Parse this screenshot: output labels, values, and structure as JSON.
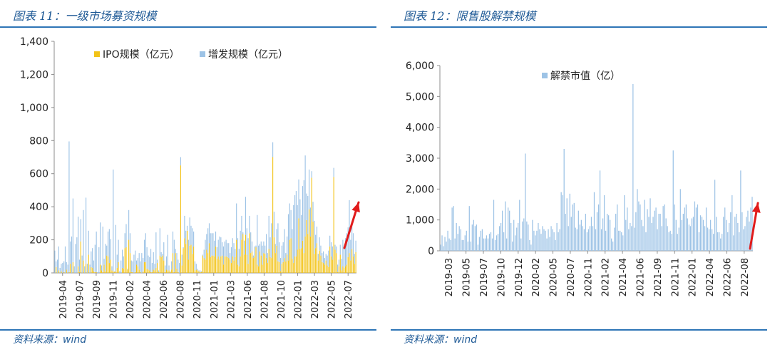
{
  "left": {
    "title": "图表 11：一级市场募资规模",
    "source_label": "资料来源：",
    "source_value": "wind",
    "colors": {
      "ipo": "#f2c318",
      "sec": "#9dc3e6",
      "arrow": "#e11b1b"
    },
    "chart_data": {
      "type": "bar",
      "stacked": true,
      "ylim": [
        0,
        1400
      ],
      "yticks": [
        "0",
        "200",
        "400",
        "600",
        "800",
        "1,000",
        "1,200",
        "1,400"
      ],
      "xticks": [
        "2019-04",
        "2019-07",
        "2019-09",
        "2019-11",
        "2020-02",
        "2020-04",
        "2020-06",
        "2020-08",
        "2020-11",
        "2021-01",
        "2021-03",
        "2021-06",
        "2021-08",
        "2021-10",
        "2022-01",
        "2022-03",
        "2022-05",
        "2022-07"
      ],
      "legend_placement": "top",
      "series": [
        {
          "name": "IPO规模（亿元）",
          "values": [
            0,
            35,
            0,
            15,
            0,
            10,
            0,
            5,
            0,
            20,
            0,
            5,
            55,
            0,
            65,
            0,
            0,
            0,
            40,
            5,
            190,
            0,
            75,
            0,
            55,
            0,
            110,
            0,
            35,
            30,
            10,
            5,
            5,
            0,
            0,
            50,
            15,
            5,
            50,
            10,
            105,
            100,
            60,
            80,
            15,
            10,
            5,
            10,
            30,
            65,
            0,
            0,
            30,
            25,
            150,
            155,
            20,
            200,
            120,
            5,
            5,
            0,
            5,
            50,
            40,
            20,
            5,
            0,
            10,
            65,
            65,
            25,
            20,
            15,
            5,
            5,
            20,
            15,
            30,
            60,
            5,
            105,
            95,
            105,
            75,
            5,
            20,
            15,
            15,
            5,
            20,
            120,
            5,
            120,
            25,
            5,
            0,
            650,
            45,
            150,
            210,
            175,
            255,
            80,
            165,
            170,
            115,
            160,
            15,
            20,
            15,
            10,
            5,
            5,
            105,
            90,
            80,
            140,
            120,
            180,
            95,
            105,
            105,
            100,
            160,
            85,
            100,
            80,
            100,
            105,
            50,
            100,
            100,
            95,
            90,
            80,
            60,
            100,
            75,
            95,
            200,
            50,
            40,
            100,
            200,
            235,
            110,
            230,
            110,
            55,
            240,
            120,
            130,
            90,
            100,
            155,
            50,
            40,
            130,
            105,
            50,
            120,
            115,
            90,
            60,
            145,
            95,
            90,
            700,
            215,
            120,
            165,
            70,
            65,
            10,
            55,
            65,
            90,
            70,
            110,
            75,
            200,
            210,
            85,
            60,
            100,
            100,
            140,
            330,
            145,
            150,
            195,
            120,
            220,
            320,
            235,
            385,
            220,
            575,
            310,
            115,
            150,
            180,
            75,
            135,
            105,
            65,
            60,
            50,
            75,
            45,
            35,
            160,
            100,
            80,
            580,
            140,
            120,
            5,
            40,
            110,
            15,
            40,
            30,
            40,
            50,
            95,
            120,
            75,
            145,
            100,
            55,
            125
          ]
        },
        {
          "name": "增发规模（亿元）",
          "values": [
            135,
            35,
            80,
            145,
            30,
            45,
            60,
            65,
            160,
            45,
            50,
            790,
            135,
            220,
            385,
            40,
            175,
            215,
            300,
            75,
            135,
            105,
            305,
            40,
            400,
            55,
            145,
            50,
            95,
            120,
            65,
            165,
            245,
            5,
            155,
            255,
            30,
            275,
            35,
            165,
            60,
            150,
            205,
            125,
            25,
            615,
            5,
            280,
            80,
            135,
            10,
            75,
            110,
            75,
            90,
            140,
            5,
            180,
            120,
            70,
            65,
            110,
            130,
            25,
            50,
            100,
            65,
            120,
            80,
            135,
            175,
            130,
            85,
            80,
            140,
            55,
            105,
            40,
            215,
            20,
            10,
            165,
            30,
            10,
            110,
            40,
            80,
            215,
            30,
            5,
            50,
            130,
            195,
            25,
            95,
            75,
            60,
            50,
            65,
            5,
            135,
            80,
            30,
            120,
            170,
            115,
            155,
            90,
            55,
            35,
            10,
            5,
            10,
            5,
            5,
            50,
            120,
            95,
            150,
            120,
            145,
            135,
            135,
            95,
            90,
            70,
            100,
            140,
            115,
            80,
            110,
            90,
            100,
            85,
            90,
            40,
            95,
            110,
            105,
            50,
            220,
            160,
            105,
            155,
            145,
            10,
            85,
            230,
            160,
            155,
            105,
            125,
            60,
            15,
            60,
            10,
            300,
            125,
            45,
            85,
            115,
            70,
            50,
            145,
            60,
            200,
            120,
            210,
            90,
            155,
            55,
            100,
            230,
            120,
            80,
            110,
            120,
            175,
            50,
            110,
            280,
            220,
            170,
            180,
            350,
            370,
            395,
            270,
            235,
            300,
            200,
            330,
            440,
            490,
            160,
            230,
            240,
            175,
            40,
            120,
            200,
            80,
            100,
            40,
            80,
            60,
            55,
            70,
            40,
            40,
            60,
            100,
            65,
            85,
            80,
            55,
            30,
            40,
            45,
            40,
            60,
            70,
            160,
            115,
            170,
            190,
            180,
            320,
            125,
            160,
            140,
            60,
            70,
            15,
            25
          ]
        }
      ]
    }
  },
  "right": {
    "title": "图表 12：限售股解禁规模",
    "source_label": "资料来源：",
    "source_value": "wind",
    "colors": {
      "bar": "#9dc3e6",
      "arrow": "#e11b1b"
    },
    "chart_data": {
      "type": "bar",
      "ylim": [
        0,
        6000
      ],
      "yticks": [
        "0",
        "1,000",
        "2,000",
        "3,000",
        "4,000",
        "5,000",
        "6,000"
      ],
      "xticks": [
        "2019-03",
        "2019-05",
        "2019-07",
        "2019-10",
        "2019-12",
        "2020-02",
        "2020-05",
        "2020-07",
        "2020-11",
        "2021-02",
        "2021-04",
        "2021-06",
        "2021-09",
        "2021-11",
        "2022-01",
        "2022-04",
        "2022-06",
        "2022-08"
      ],
      "legend_placement": "top",
      "series": [
        {
          "name": "解禁市值（亿）",
          "values": [
            200,
            500,
            150,
            450,
            300,
            650,
            400,
            350,
            1400,
            1450,
            400,
            900,
            550,
            800,
            700,
            350,
            350,
            500,
            650,
            300,
            1450,
            300,
            850,
            1000,
            800,
            850,
            200,
            450,
            650,
            700,
            400,
            400,
            500,
            400,
            550,
            600,
            400,
            1650,
            350,
            500,
            550,
            800,
            900,
            1300,
            600,
            1600,
            400,
            1400,
            1300,
            900,
            300,
            1000,
            500,
            750,
            900,
            1650,
            400,
            950,
            1050,
            3150,
            950,
            850,
            350,
            200,
            1000,
            650,
            500,
            650,
            900,
            700,
            550,
            800,
            700,
            650,
            400,
            700,
            450,
            800,
            700,
            600,
            350,
            900,
            600,
            700,
            1900,
            1800,
            3300,
            1200,
            1700,
            800,
            1850,
            1100,
            1500,
            1550,
            750,
            700,
            1300,
            850,
            1000,
            800,
            700,
            1200,
            600,
            700,
            800,
            1100,
            800,
            1900,
            700,
            1250,
            1500,
            2600,
            700,
            1050,
            1800,
            650,
            1200,
            1150,
            1000,
            400,
            300,
            750,
            1200,
            1500,
            650,
            650,
            600,
            500,
            1800,
            1000,
            1400,
            700,
            900,
            800,
            5400,
            750,
            1250,
            2000,
            1600,
            1500,
            1000,
            800,
            1650,
            600,
            1350,
            1100,
            1700,
            900,
            1100,
            1300,
            1400,
            700,
            1200,
            1200,
            800,
            1450,
            1500,
            1050,
            800,
            600,
            650,
            550,
            3250,
            1500,
            1000,
            550,
            750,
            2000,
            1000,
            1200,
            1400,
            1500,
            1050,
            850,
            800,
            1050,
            1100,
            1600,
            1400,
            1500,
            600,
            1150,
            1100,
            1000,
            800,
            1400,
            750,
            700,
            1000,
            700,
            550,
            2300,
            1100,
            600,
            600,
            400,
            550,
            1100,
            1400,
            1000,
            600,
            900,
            1250,
            1800,
            500,
            1100,
            1200,
            900,
            600,
            2600,
            1250,
            700,
            800,
            1100,
            1300,
            950,
            1400,
            1750
          ]
        }
      ]
    }
  }
}
